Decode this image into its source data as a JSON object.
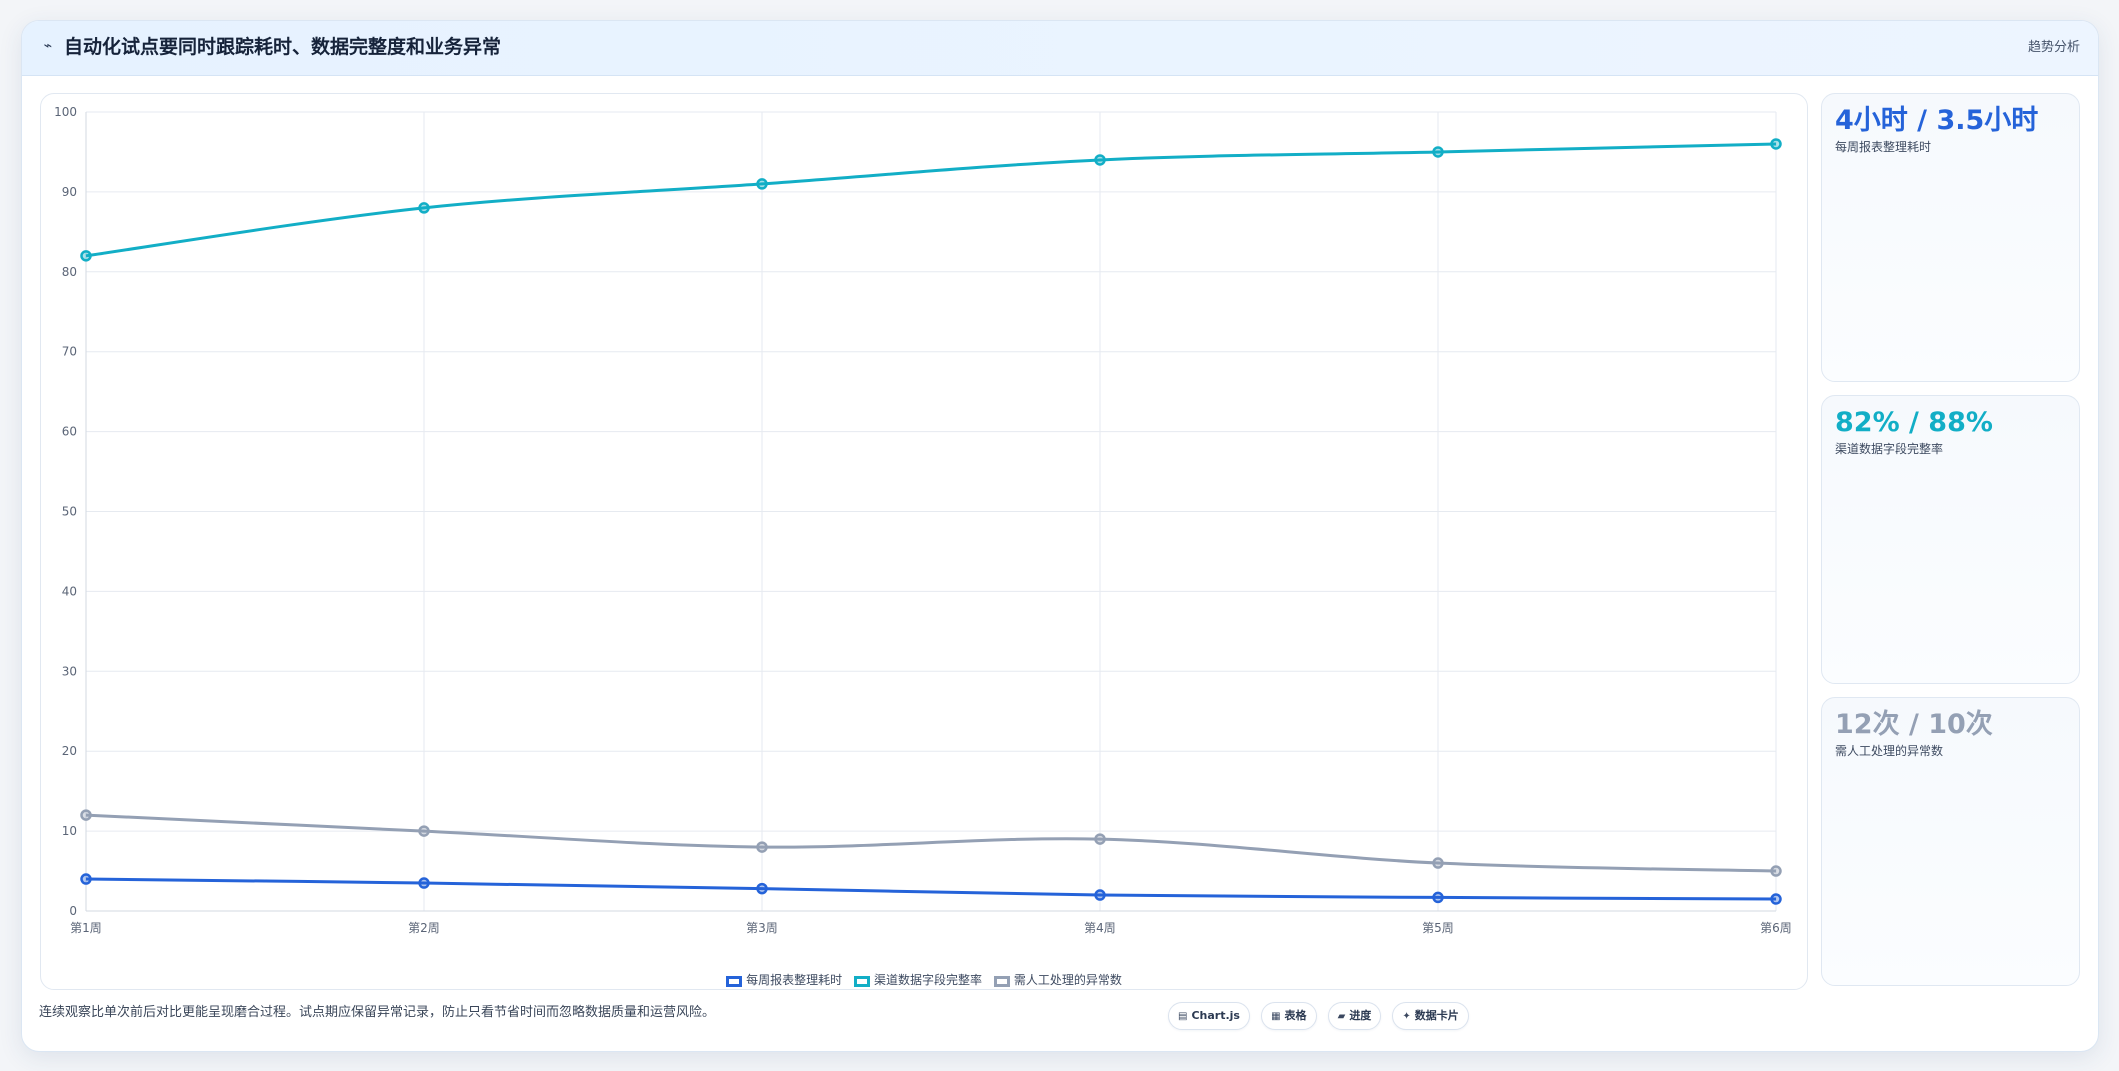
{
  "header": {
    "icon": "trend-line-icon",
    "title": "自动化试点要同时跟踪耗时、数据完整度和业务异常",
    "tag": "趋势分析"
  },
  "chart_data": {
    "type": "line",
    "categories": [
      "第1周",
      "第2周",
      "第3周",
      "第4周",
      "第5周",
      "第6周"
    ],
    "series": [
      {
        "name": "每周报表整理耗时",
        "color": "#2563d9",
        "values": [
          4,
          3.5,
          2.8,
          2.0,
          1.7,
          1.5
        ]
      },
      {
        "name": "渠道数据字段完整率",
        "color": "#12aec6",
        "values": [
          82,
          88,
          91,
          94,
          95,
          96
        ]
      },
      {
        "name": "需人工处理的异常数",
        "color": "#94a0b4",
        "values": [
          12,
          10,
          8,
          9,
          6,
          5
        ]
      }
    ],
    "ylim": [
      0,
      100
    ],
    "yticks": [
      0,
      10,
      20,
      30,
      40,
      50,
      60,
      70,
      80,
      90,
      100
    ],
    "grid": true,
    "legend": "bottom"
  },
  "kpis": [
    {
      "value": "4小时 / 3.5小时",
      "label": "每周报表整理耗时",
      "color": "#2563d9"
    },
    {
      "value": "82% / 88%",
      "label": "渠道数据字段完整率",
      "color": "#12aec6"
    },
    {
      "value": "12次 / 10次",
      "label": "需人工处理的异常数",
      "color": "#94a0b4"
    }
  ],
  "footnote": "连续观察比单次前后对比更能呈现磨合过程。试点期应保留异常记录，防止只看节省时间而忽略数据质量和运营风险。",
  "chips": [
    {
      "icon": "chart-icon",
      "glyph": "▤",
      "label": "Chart.js"
    },
    {
      "icon": "table-icon",
      "glyph": "▦",
      "label": "表格"
    },
    {
      "icon": "progress-icon",
      "glyph": "▰",
      "label": "进度"
    },
    {
      "icon": "card-icon",
      "glyph": "✦",
      "label": "数据卡片"
    }
  ]
}
